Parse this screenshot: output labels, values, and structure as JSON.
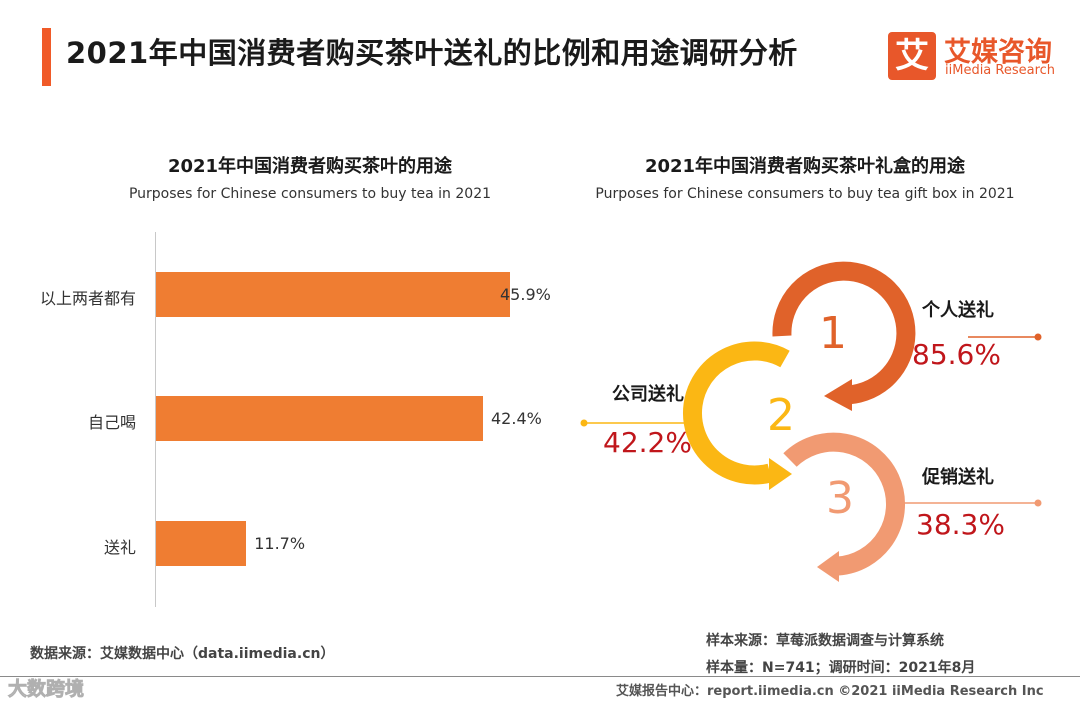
{
  "header": {
    "title": "2021年中国消费者购买茶叶送礼的比例和用途调研分析",
    "logo_mark": "艾",
    "logo_cn": "艾媒咨询",
    "logo_en": "iiMedia Research"
  },
  "left_chart": {
    "title": "2021年中国消费者购买茶叶的用途",
    "subtitle": "Purposes for Chinese consumers to buy tea in 2021"
  },
  "right_chart": {
    "title": "2021年中国消费者购买茶叶礼盒的用途",
    "subtitle": "Purposes for Chinese consumers to buy tea gift box in 2021"
  },
  "chart_data": [
    {
      "type": "bar",
      "orientation": "horizontal",
      "title": "2021年中国消费者购买茶叶的用途",
      "subtitle": "Purposes for Chinese consumers to buy tea in 2021",
      "categories": [
        "以上两者都有",
        "自己喝",
        "送礼"
      ],
      "values": [
        45.9,
        42.4,
        11.7
      ],
      "value_labels": [
        "45.9%",
        "42.4%",
        "11.7%"
      ],
      "unit": "%",
      "xlim": [
        0,
        52
      ],
      "grid": false,
      "color": "#ef7d32"
    },
    {
      "type": "table",
      "title": "2021年中国消费者购买茶叶礼盒的用途",
      "subtitle": "Purposes for Chinese consumers to buy tea gift box in 2021",
      "items": [
        {
          "rank": "1",
          "label": "个人送礼",
          "value": 85.6,
          "value_label": "85.6%",
          "color": "#e0622a"
        },
        {
          "rank": "2",
          "label": "公司送礼",
          "value": 42.2,
          "value_label": "42.2%",
          "color": "#fbb714"
        },
        {
          "rank": "3",
          "label": "促销送礼",
          "value": 38.3,
          "value_label": "38.3%",
          "color": "#f19a72"
        }
      ]
    }
  ],
  "footer": {
    "source": "数据来源：艾媒数据中心（data.iimedia.cn）",
    "sample_source": "样本来源：草莓派数据调查与计算系统",
    "sample_size": "样本量：N=741；调研时间：2021年8月",
    "copyright": "艾媒报告中心：report.iimedia.cn  ©2021  iiMedia Research  Inc",
    "watermark": "大数跨境"
  },
  "colors": {
    "accent": "#f05a28",
    "bar": "#ef7d32",
    "percent_text": "#c0161b"
  }
}
